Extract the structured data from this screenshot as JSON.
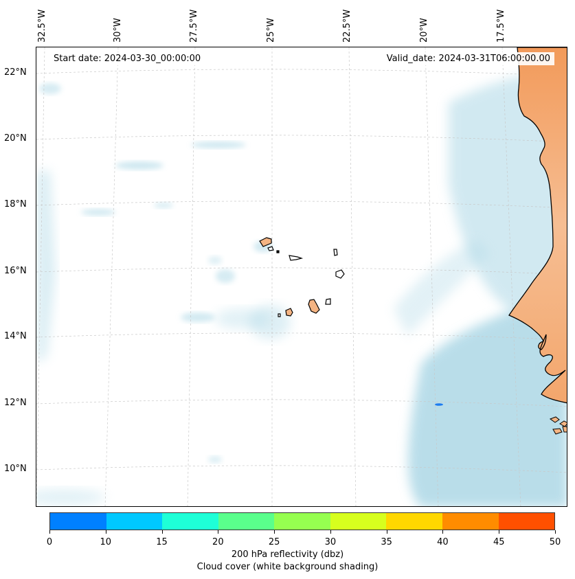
{
  "map": {
    "longitude_labels": [
      "32.5°W",
      "30°W",
      "27.5°W",
      "25°W",
      "22.5°W",
      "20°W",
      "17.5°W"
    ],
    "latitude_labels": [
      "22°N",
      "20°N",
      "18°N",
      "16°N",
      "14°N",
      "12°N",
      "10°N"
    ],
    "start_date": "Start date: 2024-03-30_00:00:00",
    "valid_date": "Valid_date: 2024-03-31T06:00:00.00"
  },
  "colorbar": {
    "ticks": [
      "0",
      "10",
      "15",
      "20",
      "25",
      "30",
      "35",
      "40",
      "45",
      "50"
    ],
    "colors": [
      "#0080ff",
      "#00c8ff",
      "#1effd7",
      "#5aff8c",
      "#96ff50",
      "#d7ff1e",
      "#ffd700",
      "#ff8c00",
      "#ff5000"
    ],
    "title_line1": "200 hPa reflectivity (dbz)",
    "title_line2": "Cloud cover (white background shading)"
  },
  "colors": {
    "land": "#f4b483",
    "cloud": "#add8e6",
    "coast": "#000000"
  }
}
